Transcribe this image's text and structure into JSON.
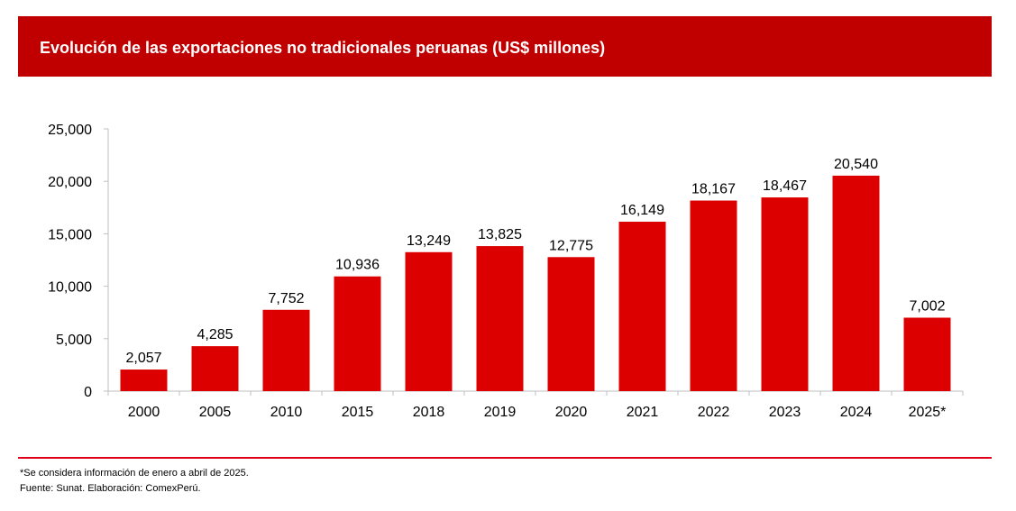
{
  "chart_data": {
    "type": "bar",
    "title": "Evolución de las exportaciones no tradicionales peruanas (US$ millones)",
    "categories": [
      "2000",
      "2005",
      "2010",
      "2015",
      "2018",
      "2019",
      "2020",
      "2021",
      "2022",
      "2023",
      "2024",
      "2025*"
    ],
    "values": [
      2057,
      4285,
      7752,
      10936,
      13249,
      13825,
      12775,
      16149,
      18167,
      18467,
      20540,
      7002
    ],
    "value_labels": [
      "2,057",
      "4,285",
      "7,752",
      "10,936",
      "13,249",
      "13,825",
      "12,775",
      "16,149",
      "18,167",
      "18,467",
      "20,540",
      "7,002"
    ],
    "yticks": [
      "0",
      "5,000",
      "10,000",
      "15,000",
      "20,000",
      "25,000"
    ],
    "ylim": [
      0,
      25000
    ],
    "xlabel": "",
    "ylabel": "",
    "grid": false,
    "legend": "none",
    "bar_color": "#dc0000"
  },
  "colors": {
    "header_bg": "#c00000",
    "accent_line": "#e0001b"
  },
  "notes": {
    "footnote": "*Se considera información de enero a abril de 2025.",
    "source": "Fuente: Sunat. Elaboración: ComexPerú."
  }
}
